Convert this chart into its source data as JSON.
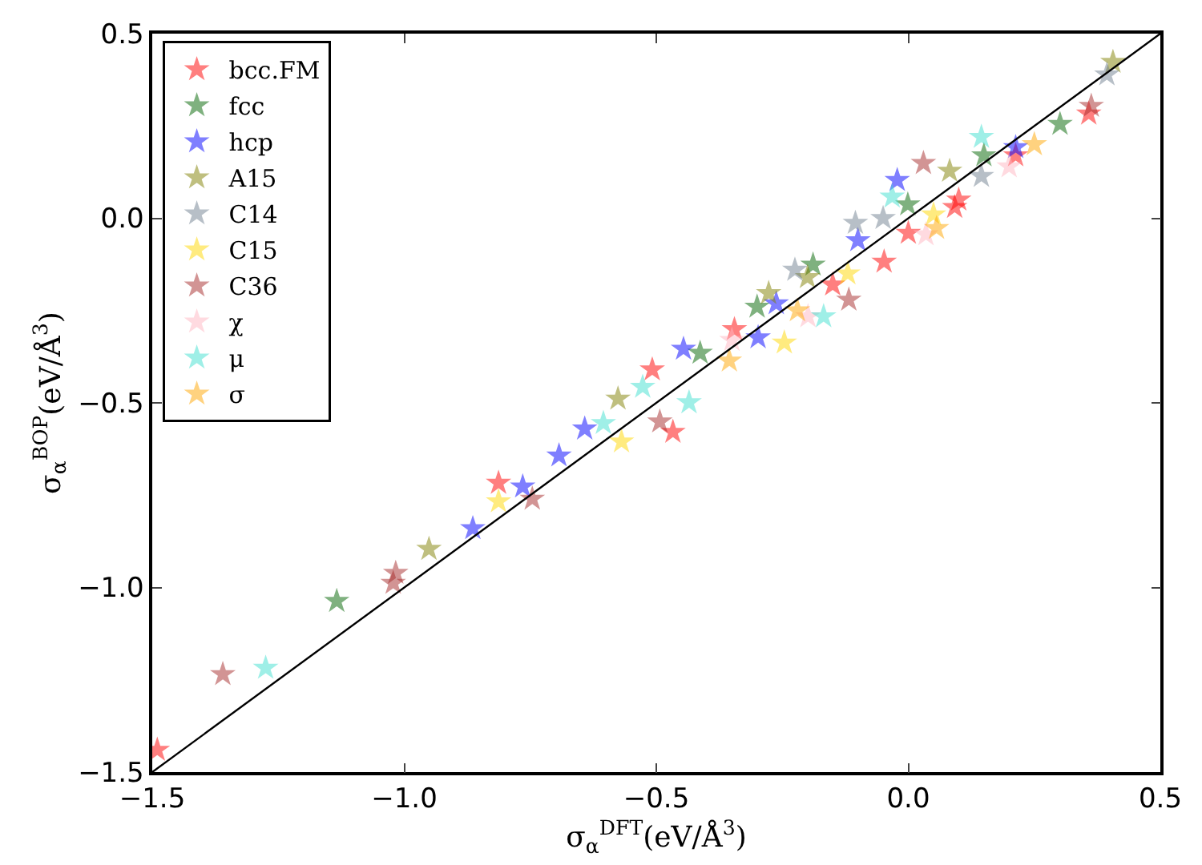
{
  "chart_data": {
    "type": "scatter",
    "xlabel": "σ$_{α}$$^{DFT}$(eV/Å$^{3}$)",
    "ylabel": "σ$_{α}$$^{BOP}$(eV/Å$^{3}$)",
    "xlim": [
      -1.5,
      0.5
    ],
    "ylim": [
      -1.5,
      0.5
    ],
    "xticks": [
      {
        "value": -1.5,
        "label": "−1.5"
      },
      {
        "value": -1.0,
        "label": "−1.0"
      },
      {
        "value": -0.5,
        "label": "−0.5"
      },
      {
        "value": 0.0,
        "label": "0.0"
      },
      {
        "value": 0.5,
        "label": "0.5"
      }
    ],
    "yticks": [
      {
        "value": -1.5,
        "label": "−1.5"
      },
      {
        "value": -1.0,
        "label": "−1.0"
      },
      {
        "value": -0.5,
        "label": "−0.5"
      },
      {
        "value": 0.0,
        "label": "0.0"
      },
      {
        "value": 0.5,
        "label": "0.5"
      }
    ],
    "legend": "top left",
    "marker": "star",
    "series": [
      {
        "name": "bcc.FM",
        "color": "#ff0000",
        "x": [
          -1.49,
          -0.813,
          -0.508,
          -0.467,
          -0.345,
          -0.048,
          0.092,
          0.213,
          0.358,
          -0.15,
          0.0,
          0.1
        ],
        "values": [
          -1.44,
          -0.717,
          -0.41,
          -0.579,
          -0.301,
          -0.118,
          0.03,
          0.17,
          0.283,
          -0.18,
          -0.04,
          0.05
        ]
      },
      {
        "name": "fcc",
        "color": "#006400",
        "x": [
          -1.134,
          -0.413,
          -0.189,
          -0.001,
          0.301,
          -0.3,
          0.15
        ],
        "values": [
          -1.037,
          -0.365,
          -0.126,
          0.037,
          0.255,
          -0.24,
          0.17
        ]
      },
      {
        "name": "hcp",
        "color": "#0000ff",
        "x": [
          -0.864,
          -0.765,
          -0.693,
          -0.642,
          -0.446,
          -0.298,
          -0.262,
          -0.022,
          0.213,
          -0.1
        ],
        "values": [
          -0.84,
          -0.727,
          -0.643,
          -0.57,
          -0.354,
          -0.323,
          -0.231,
          0.103,
          0.192,
          -0.06
        ]
      },
      {
        "name": "A15",
        "color": "#808000",
        "x": [
          -0.951,
          -0.576,
          -0.277,
          0.082,
          0.406,
          -0.2
        ],
        "values": [
          -0.896,
          -0.489,
          -0.203,
          0.128,
          0.423,
          -0.16
        ]
      },
      {
        "name": "C14",
        "color": "#708090",
        "x": [
          -0.225,
          -0.105,
          0.145,
          0.394,
          -0.05
        ],
        "values": [
          -0.14,
          -0.013,
          0.114,
          0.389,
          0.0
        ]
      },
      {
        "name": "C15",
        "color": "#ffd700",
        "x": [
          -0.813,
          -0.569,
          -0.246,
          -0.12,
          0.05
        ],
        "values": [
          -0.767,
          -0.605,
          -0.337,
          -0.15,
          0.01
        ]
      },
      {
        "name": "C36",
        "color": "#a52a2a",
        "x": [
          -1.36,
          -1.017,
          -1.022,
          -0.746,
          -0.493,
          -0.118,
          0.03,
          0.363
        ],
        "values": [
          -1.235,
          -0.961,
          -0.988,
          -0.76,
          -0.551,
          -0.221,
          0.149,
          0.304
        ]
      },
      {
        "name": "χ",
        "color": "#ffb6c1",
        "x": [
          -0.199,
          0.035,
          -0.35,
          0.2
        ],
        "values": [
          -0.266,
          -0.044,
          -0.33,
          0.14
        ]
      },
      {
        "name": "μ",
        "color": "#40e0d0",
        "x": [
          -1.275,
          -0.605,
          -0.527,
          -0.435,
          -0.168,
          -0.032,
          0.145
        ],
        "values": [
          -1.218,
          -0.555,
          -0.457,
          -0.499,
          -0.266,
          0.058,
          0.22
        ]
      },
      {
        "name": "σ",
        "color": "#ffa500",
        "x": [
          -0.355,
          0.056,
          -0.22,
          0.25
        ],
        "values": [
          -0.386,
          -0.027,
          -0.25,
          0.2
        ]
      },
      {
        "type": "line",
        "color": "#000000",
        "x": [
          -1.5,
          0.5
        ],
        "values": [
          -1.5,
          0.5
        ],
        "marker": "none"
      }
    ]
  }
}
